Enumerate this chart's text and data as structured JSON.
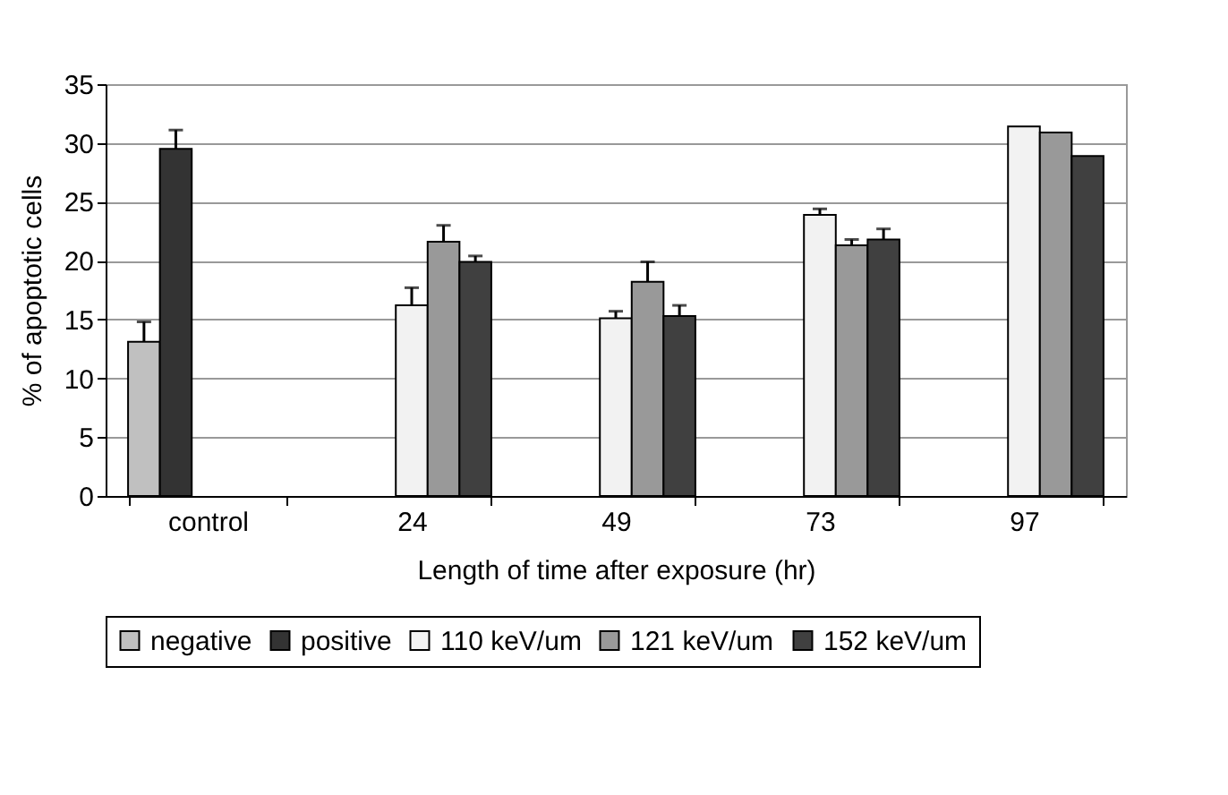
{
  "chart_data": {
    "type": "bar",
    "xlabel": "Length of time after exposure (hr)",
    "ylabel": "% of apoptotic cells",
    "categories": [
      "control",
      "24",
      "49",
      "73",
      "97"
    ],
    "series": [
      {
        "name": "negative",
        "color": "#c0c0c0",
        "values": [
          13.1,
          null,
          null,
          null,
          null
        ],
        "errors": [
          [
            13.1,
            14.8
          ],
          null,
          null,
          null,
          null
        ]
      },
      {
        "name": "positive",
        "color": "#333333",
        "values": [
          29.5,
          null,
          null,
          null,
          null
        ],
        "errors": [
          [
            29.5,
            31.1
          ],
          null,
          null,
          null,
          null
        ]
      },
      {
        "name": "110 keV/um",
        "color": "#f2f2f2",
        "values": [
          null,
          16.2,
          15.1,
          23.9,
          31.4
        ],
        "errors": [
          null,
          [
            16.2,
            17.7
          ],
          [
            15.1,
            15.7
          ],
          [
            23.9,
            24.4
          ],
          null
        ]
      },
      {
        "name": "121 keV/um",
        "color": "#999999",
        "values": [
          null,
          21.6,
          18.2,
          21.3,
          30.9
        ],
        "errors": [
          null,
          [
            21.6,
            23.0
          ],
          [
            18.2,
            19.9
          ],
          [
            21.3,
            21.8
          ],
          null
        ]
      },
      {
        "name": "152 keV/um",
        "color": "#404040",
        "values": [
          null,
          19.9,
          15.3,
          21.8,
          28.9
        ],
        "errors": [
          null,
          [
            19.9,
            20.4
          ],
          [
            15.3,
            16.2
          ],
          [
            21.8,
            22.7
          ],
          null
        ]
      }
    ],
    "ylim": [
      0,
      35
    ],
    "yticks": [
      0,
      5,
      10,
      15,
      20,
      25,
      30,
      35
    ],
    "grid": "y",
    "legend": "bottom"
  }
}
